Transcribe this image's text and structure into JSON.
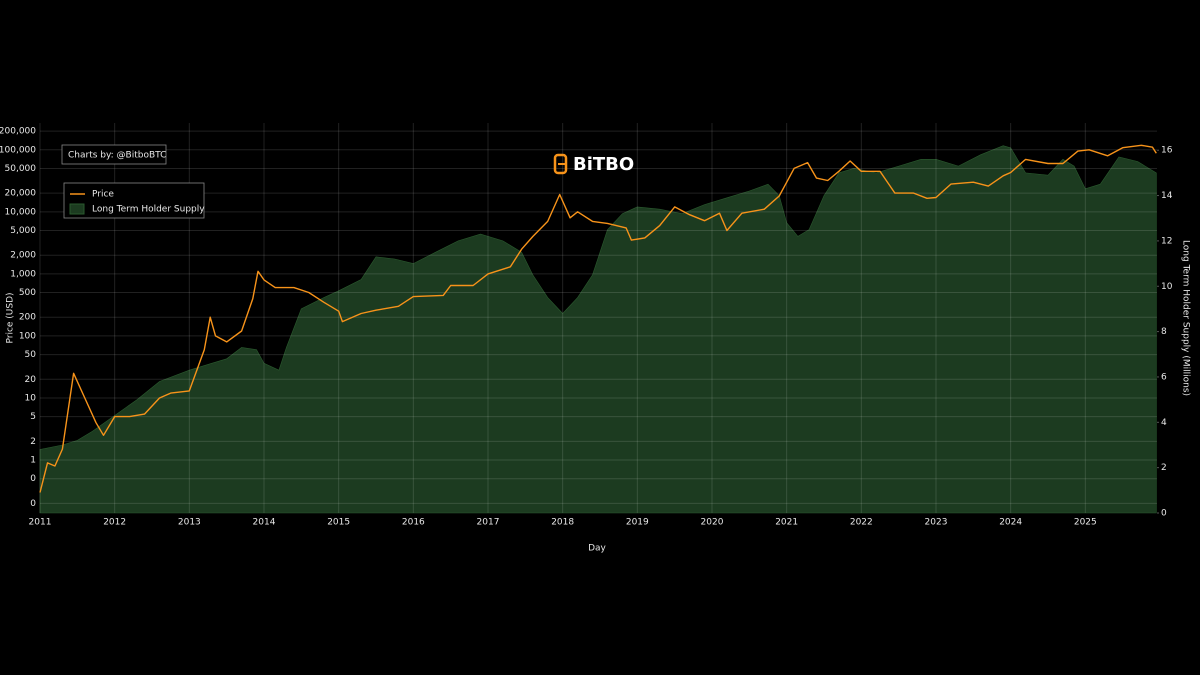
{
  "chart_data": {
    "type": "line",
    "watermark": "BiTBO",
    "credit": "Charts by: @BitboBTC",
    "xlabel": "Day",
    "ylabel": "Price (USD)",
    "y2label": "Long Term Holder Supply (Millions)",
    "yscale": "log",
    "grid": true,
    "legend": "top-left",
    "xlim": [
      2011,
      2025.96
    ],
    "xticks": [
      2011,
      2012,
      2013,
      2014,
      2015,
      2016,
      2017,
      2018,
      2019,
      2020,
      2021,
      2022,
      2023,
      2024,
      2025
    ],
    "ylim": [
      0.14,
      270000
    ],
    "yticks": [
      {
        "value": 0.2,
        "label": "0"
      },
      {
        "value": 0.5,
        "label": "0"
      },
      1,
      2,
      5,
      10,
      20,
      50,
      100,
      200,
      500,
      {
        "value": 1000,
        "label": "1,000"
      },
      {
        "value": 2000,
        "label": "2,000"
      },
      {
        "value": 5000,
        "label": "5,000"
      },
      {
        "value": 10000,
        "label": "10,000"
      },
      {
        "value": 20000,
        "label": "20,000"
      },
      {
        "value": 50000,
        "label": "50,000"
      },
      {
        "value": 100000,
        "label": "100,000"
      },
      {
        "value": 200000,
        "label": "200,000"
      }
    ],
    "y2lim": [
      0,
      17.2
    ],
    "y2ticks": [
      0,
      2,
      4,
      6,
      8,
      10,
      12,
      14,
      16
    ],
    "series": [
      {
        "name": "Price",
        "color": "#f7931a",
        "kind": "line",
        "x": [
          2011.0,
          2011.1,
          2011.2,
          2011.3,
          2011.45,
          2011.6,
          2011.75,
          2011.85,
          2012.0,
          2012.2,
          2012.4,
          2012.6,
          2012.75,
          2013.0,
          2013.2,
          2013.28,
          2013.35,
          2013.5,
          2013.7,
          2013.85,
          2013.92,
          2014.0,
          2014.15,
          2014.4,
          2014.6,
          2014.8,
          2015.0,
          2015.05,
          2015.3,
          2015.5,
          2015.8,
          2016.0,
          2016.4,
          2016.5,
          2016.8,
          2017.0,
          2017.3,
          2017.45,
          2017.6,
          2017.8,
          2017.96,
          2018.1,
          2018.2,
          2018.4,
          2018.6,
          2018.85,
          2018.92,
          2019.1,
          2019.3,
          2019.5,
          2019.7,
          2019.9,
          2020.1,
          2020.2,
          2020.4,
          2020.7,
          2020.9,
          2021.0,
          2021.1,
          2021.28,
          2021.4,
          2021.55,
          2021.7,
          2021.85,
          2022.0,
          2022.25,
          2022.45,
          2022.7,
          2022.88,
          2023.0,
          2023.2,
          2023.5,
          2023.7,
          2023.9,
          2024.0,
          2024.2,
          2024.5,
          2024.7,
          2024.9,
          2025.05,
          2025.3,
          2025.5,
          2025.75,
          2025.9,
          2025.95
        ],
        "values": [
          0.3,
          0.9,
          0.8,
          1.5,
          25,
          10,
          4,
          2.5,
          5,
          5,
          5.5,
          10,
          12,
          13,
          60,
          200,
          100,
          80,
          120,
          400,
          1100,
          800,
          600,
          600,
          500,
          350,
          250,
          170,
          230,
          260,
          300,
          430,
          450,
          650,
          650,
          1000,
          1300,
          2500,
          4000,
          7000,
          19000,
          8000,
          10000,
          7000,
          6500,
          5500,
          3500,
          3800,
          6000,
          12000,
          9000,
          7200,
          9500,
          5000,
          9500,
          11000,
          18000,
          30000,
          50000,
          62000,
          35000,
          32000,
          45000,
          66000,
          45000,
          45000,
          20000,
          20000,
          16500,
          17000,
          28000,
          30000,
          26000,
          38000,
          43000,
          70000,
          60000,
          60000,
          95000,
          100000,
          80000,
          108000,
          118000,
          110000,
          88000
        ]
      },
      {
        "name": "Long Term Holder Supply",
        "color": "#1c3b20",
        "kind": "area",
        "axis": "y2",
        "x": [
          2011.0,
          2011.3,
          2011.5,
          2011.7,
          2012.0,
          2012.3,
          2012.6,
          2013.0,
          2013.3,
          2013.5,
          2013.7,
          2013.9,
          2014.0,
          2014.2,
          2014.3,
          2014.5,
          2014.8,
          2015.0,
          2015.3,
          2015.5,
          2015.75,
          2016.0,
          2016.3,
          2016.6,
          2016.9,
          2017.2,
          2017.45,
          2017.6,
          2017.8,
          2018.0,
          2018.2,
          2018.4,
          2018.6,
          2018.8,
          2019.0,
          2019.3,
          2019.6,
          2019.9,
          2020.2,
          2020.5,
          2020.75,
          2020.9,
          2021.0,
          2021.15,
          2021.3,
          2021.5,
          2021.7,
          2021.9,
          2022.2,
          2022.5,
          2022.8,
          2023.0,
          2023.3,
          2023.6,
          2023.9,
          2024.0,
          2024.2,
          2024.5,
          2024.7,
          2024.85,
          2025.0,
          2025.2,
          2025.45,
          2025.7,
          2025.95
        ],
        "values": [
          2.8,
          3.0,
          3.2,
          3.6,
          4.3,
          5.0,
          5.8,
          6.3,
          6.6,
          6.8,
          7.3,
          7.2,
          6.6,
          6.3,
          7.3,
          9.0,
          9.5,
          9.8,
          10.3,
          11.3,
          11.2,
          11.0,
          11.5,
          12.0,
          12.3,
          12.0,
          11.5,
          10.5,
          9.5,
          8.8,
          9.5,
          10.5,
          12.5,
          13.2,
          13.5,
          13.4,
          13.2,
          13.6,
          13.9,
          14.2,
          14.5,
          14.0,
          12.8,
          12.2,
          12.5,
          14.0,
          15.0,
          15.2,
          15.0,
          15.3,
          15.6,
          15.6,
          15.3,
          15.8,
          16.2,
          16.1,
          15.0,
          14.9,
          15.6,
          15.3,
          14.3,
          14.5,
          15.7,
          15.5,
          15.0
        ]
      }
    ]
  }
}
